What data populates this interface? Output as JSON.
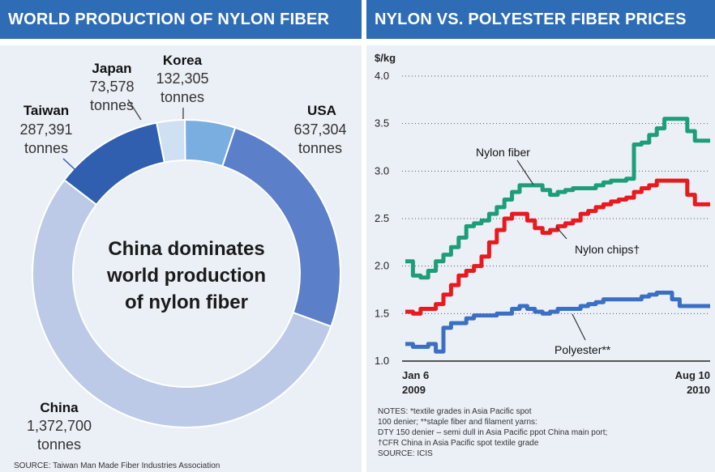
{
  "chart_data": [
    {
      "type": "pie",
      "title": "WORLD PRODUCTION OF NYLON FIBER",
      "center_text": [
        "China dominates",
        "world production",
        "of nylon fiber"
      ],
      "unit": "tonnes",
      "slices": [
        {
          "name": "USA",
          "value": 637304,
          "value_text": "637,304",
          "color": "#5b7fc8"
        },
        {
          "name": "China",
          "value": 1372700,
          "value_text": "1,372,700",
          "color": "#bccae7"
        },
        {
          "name": "Taiwan",
          "value": 287391,
          "value_text": "287,391",
          "color": "#2f5fae"
        },
        {
          "name": "Japan",
          "value": 73578,
          "value_text": "73,578",
          "color": "#cfe0f3"
        },
        {
          "name": "Korea",
          "value": 132305,
          "value_text": "132,305",
          "color": "#7aaee0"
        }
      ],
      "source": "SOURCE: Taiwan Man Made Fiber Industries Association"
    },
    {
      "type": "line",
      "title": "NYLON VS. POLYESTER FIBER PRICES",
      "ylabel": "$/kg",
      "ylim": [
        1.0,
        4.0
      ],
      "yticks": [
        "4.0",
        "3.5",
        "3.0",
        "2.5",
        "2.0",
        "1.5",
        "1.0"
      ],
      "x_start": [
        "Jan 6",
        "2009"
      ],
      "x_end": [
        "Aug 10",
        "2010"
      ],
      "series": [
        {
          "name": "Nylon fiber",
          "color": "#1e9e78",
          "x": [
            0,
            1,
            2,
            3,
            4,
            5,
            6,
            7,
            8,
            9,
            10,
            11,
            12,
            13,
            14,
            15,
            16,
            17,
            18,
            19,
            20,
            21,
            22,
            23,
            24,
            25,
            26,
            27,
            28,
            29,
            30,
            31,
            32,
            33,
            34,
            35,
            36,
            37,
            38,
            39,
            40
          ],
          "y": [
            2.05,
            1.9,
            1.88,
            1.95,
            2.05,
            2.12,
            2.2,
            2.3,
            2.42,
            2.45,
            2.48,
            2.55,
            2.62,
            2.7,
            2.78,
            2.85,
            2.85,
            2.85,
            2.8,
            2.75,
            2.78,
            2.8,
            2.82,
            2.82,
            2.82,
            2.85,
            2.88,
            2.9,
            2.9,
            2.92,
            3.28,
            3.3,
            3.38,
            3.45,
            3.55,
            3.55,
            3.55,
            3.42,
            3.32,
            3.32,
            3.32
          ]
        },
        {
          "name": "Nylon chips†",
          "color": "#e8191f",
          "x": [
            0,
            1,
            2,
            3,
            4,
            5,
            6,
            7,
            8,
            9,
            10,
            11,
            12,
            13,
            14,
            15,
            16,
            17,
            18,
            19,
            20,
            21,
            22,
            23,
            24,
            25,
            26,
            27,
            28,
            29,
            30,
            31,
            32,
            33,
            34,
            35,
            36,
            37,
            38,
            39,
            40
          ],
          "y": [
            1.52,
            1.5,
            1.55,
            1.55,
            1.6,
            1.7,
            1.8,
            1.9,
            1.95,
            2.0,
            2.1,
            2.25,
            2.38,
            2.5,
            2.55,
            2.55,
            2.48,
            2.4,
            2.35,
            2.38,
            2.42,
            2.45,
            2.48,
            2.55,
            2.58,
            2.62,
            2.65,
            2.68,
            2.7,
            2.72,
            2.78,
            2.82,
            2.85,
            2.9,
            2.9,
            2.9,
            2.9,
            2.75,
            2.65,
            2.65,
            2.65
          ]
        },
        {
          "name": "Polyester**",
          "color": "#3a6fc4",
          "x": [
            0,
            1,
            2,
            3,
            4,
            5,
            6,
            7,
            8,
            9,
            10,
            11,
            12,
            13,
            14,
            15,
            16,
            17,
            18,
            19,
            20,
            21,
            22,
            23,
            24,
            25,
            26,
            27,
            28,
            29,
            30,
            31,
            32,
            33,
            34,
            35,
            36,
            37,
            38,
            39,
            40
          ],
          "y": [
            1.18,
            1.15,
            1.15,
            1.18,
            1.1,
            1.35,
            1.4,
            1.4,
            1.45,
            1.48,
            1.48,
            1.48,
            1.5,
            1.5,
            1.55,
            1.58,
            1.55,
            1.52,
            1.5,
            1.52,
            1.55,
            1.55,
            1.55,
            1.58,
            1.6,
            1.62,
            1.65,
            1.65,
            1.65,
            1.65,
            1.65,
            1.68,
            1.7,
            1.72,
            1.72,
            1.65,
            1.58,
            1.58,
            1.58,
            1.58,
            1.58
          ]
        }
      ],
      "notes": [
        "NOTES: *textile grades in Asia Pacific spot",
        "100 denier; **staple fiber and filament yarns:",
        "DTY 150 denier – semi dull in Asia Pacific ppot China main port;",
        "†CFR China in Asia Pacific spot textile grade",
        "SOURCE: ICIS"
      ]
    }
  ]
}
